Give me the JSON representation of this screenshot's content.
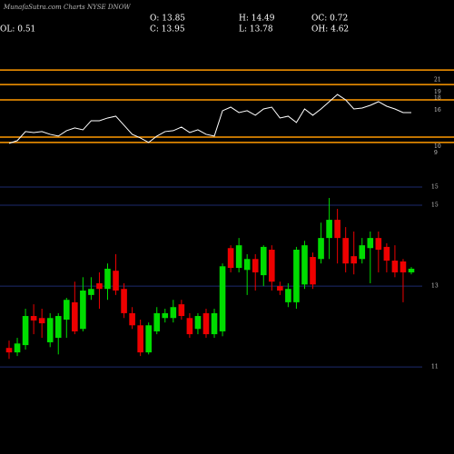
{
  "header": {
    "title": "MunafaSutra.com Charts NYSE DNOW",
    "stats": [
      "O: 13.85",
      "H: 14.49",
      "OC: 0.72",
      "C: 13.95",
      "L: 13.78",
      "OH: 4.62",
      "OL: 0.51"
    ]
  },
  "chart_data": [
    {
      "type": "line",
      "values": [
        10.55,
        11.0,
        12.49,
        12.34,
        12.49,
        12.04,
        11.75,
        12.64,
        13.09,
        12.79,
        14.28,
        14.28,
        14.73,
        15.03,
        13.54,
        12.04,
        11.45,
        10.7,
        11.75,
        12.49,
        12.64,
        13.24,
        12.34,
        12.79,
        12.04,
        11.75,
        15.93,
        16.52,
        15.63,
        15.93,
        15.18,
        16.22,
        16.52,
        14.73,
        15.03,
        13.99,
        16.22,
        15.18,
        16.22,
        17.42,
        18.61,
        17.72,
        16.22,
        16.37,
        16.82,
        17.42,
        16.67,
        16.22,
        15.63,
        15.63
      ],
      "color": "#ffffff",
      "levels": [
        22.64,
        20.25,
        17.72,
        11.59,
        10.7
      ],
      "level_color": "#ff9900",
      "ylim": [
        5,
        24
      ],
      "yticks": [
        9,
        10,
        16,
        18,
        19,
        21
      ]
    },
    {
      "type": "candlestick",
      "open": [
        11.47,
        11.36,
        11.54,
        12.26,
        12.21,
        11.61,
        11.72,
        12.17,
        12.6,
        11.94,
        12.78,
        13.07,
        12.93,
        13.38,
        12.93,
        12.33,
        12.03,
        11.36,
        11.88,
        12.21,
        12.21,
        12.55,
        12.21,
        11.94,
        12.33,
        11.81,
        11.88,
        13.94,
        13.45,
        13.4,
        13.67,
        13.27,
        13.9,
        13.0,
        12.6,
        12.6,
        13.04,
        13.72,
        13.67,
        14.19,
        14.64,
        14.19,
        13.74,
        13.67,
        13.94,
        14.19,
        13.97,
        13.63,
        13.61,
        13.34
      ],
      "high": [
        11.65,
        11.72,
        12.44,
        12.55,
        12.44,
        12.33,
        12.33,
        12.71,
        13.11,
        13.22,
        13.22,
        13.34,
        13.56,
        13.79,
        13.07,
        12.48,
        12.17,
        12.1,
        12.48,
        12.44,
        12.66,
        12.66,
        12.33,
        12.33,
        12.44,
        12.44,
        13.56,
        14.01,
        14.19,
        13.79,
        13.79,
        14.01,
        14.01,
        13.11,
        13.07,
        13.97,
        14.12,
        13.83,
        14.57,
        15.18,
        14.91,
        14.46,
        14.35,
        14.19,
        14.35,
        14.35,
        14.06,
        14.01,
        13.67,
        13.47
      ],
      "low": [
        11.2,
        11.27,
        11.43,
        11.81,
        11.72,
        11.49,
        11.31,
        11.72,
        11.81,
        11.88,
        12.66,
        12.44,
        12.66,
        12.78,
        12.21,
        11.94,
        11.27,
        11.31,
        11.81,
        12.1,
        12.1,
        12.17,
        11.72,
        11.81,
        11.72,
        11.72,
        11.76,
        13.34,
        13.34,
        12.78,
        12.89,
        13.0,
        12.89,
        12.78,
        12.48,
        12.44,
        12.93,
        12.93,
        13.56,
        13.67,
        13.56,
        13.34,
        13.29,
        13.56,
        13.07,
        13.34,
        13.34,
        13.22,
        12.6,
        13.29
      ],
      "close": [
        11.36,
        11.58,
        12.26,
        12.15,
        12.08,
        12.21,
        12.26,
        12.66,
        11.88,
        12.89,
        12.93,
        12.93,
        13.43,
        12.89,
        12.33,
        12.03,
        11.36,
        12.03,
        12.33,
        12.33,
        12.48,
        12.26,
        11.81,
        12.26,
        11.81,
        12.33,
        13.49,
        13.45,
        14.01,
        13.67,
        13.34,
        13.97,
        13.11,
        12.89,
        12.93,
        13.9,
        14.01,
        13.04,
        14.19,
        14.64,
        14.19,
        13.56,
        13.56,
        14.01,
        14.19,
        13.9,
        13.63,
        13.34,
        13.34,
        13.43
      ],
      "up_color": "#00dd00",
      "down_color": "#ee0000",
      "grid_color": "#1c2a6e",
      "ylim": [
        9.52,
        15.81
      ],
      "yticks": [
        11,
        13,
        15,
        {
          "value": 15.45,
          "label": "15"
        }
      ],
      "grid": true
    }
  ]
}
